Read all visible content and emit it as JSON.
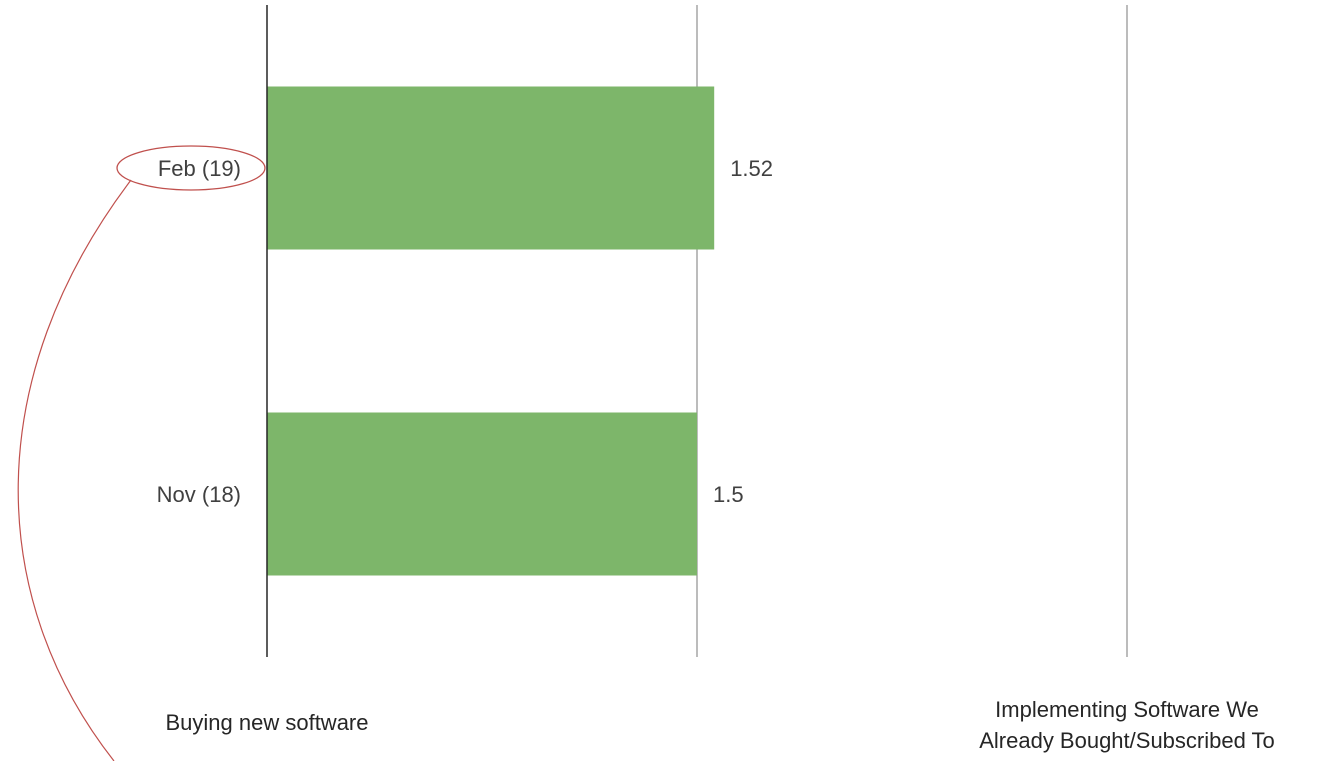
{
  "chart_data": {
    "type": "bar",
    "orientation": "horizontal",
    "categories": [
      "Feb (19)",
      "Nov (18)"
    ],
    "values": [
      1.52,
      1.5
    ],
    "value_labels": [
      "1.52",
      "1.5"
    ],
    "xlim": [
      1,
      2
    ],
    "xticks": [
      1,
      1.5,
      2
    ],
    "grid": true,
    "bar_color": "#7db66a",
    "gridline_color": "#a6a6a6",
    "axis_color": "#262626",
    "left_anchor_label": "Buying new software",
    "right_anchor_label": [
      "Implementing Software We",
      "Already Bought/Subscribed To"
    ]
  },
  "annotation": {
    "highlighted_category": "Feb (19)",
    "color": "#c0504d"
  }
}
